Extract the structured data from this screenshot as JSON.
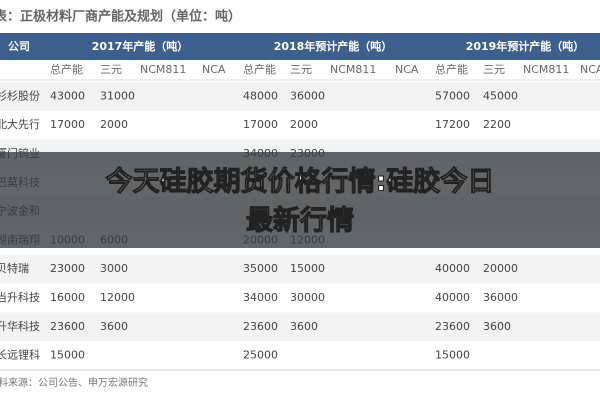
{
  "title": "表：正极材料厂商产能及规划（单位：吨）",
  "table": {
    "header": [
      "公司",
      "2017年产能（吨）",
      "2018年预计产能（吨）",
      "2019年预计产能（吨）"
    ],
    "subheader": [
      "总产能",
      "三元",
      "NCM811",
      "NCA"
    ],
    "rows": [
      [
        "杉杉股份",
        43000,
        31000,
        null,
        null,
        48000,
        36000,
        null,
        null,
        57000,
        45000,
        null,
        null
      ],
      [
        "北大先行",
        17000,
        2000,
        null,
        null,
        17000,
        2000,
        null,
        null,
        17200,
        2200,
        null,
        null
      ],
      [
        "厦门钨业",
        null,
        null,
        null,
        null,
        34000,
        23000,
        null,
        null,
        null,
        null,
        null,
        null
      ],
      [
        "巴莫科技",
        null,
        null,
        null,
        null,
        null,
        null,
        null,
        null,
        null,
        null,
        null,
        null
      ],
      [
        "宁波金和",
        null,
        null,
        null,
        null,
        null,
        null,
        null,
        null,
        null,
        null,
        null,
        null
      ],
      [
        "湖南瑞翔",
        10000,
        6000,
        null,
        null,
        20000,
        12000,
        null,
        null,
        null,
        null,
        null,
        null
      ],
      [
        "贝特瑞",
        23000,
        3000,
        null,
        null,
        35000,
        15000,
        null,
        null,
        40000,
        20000,
        null,
        null
      ],
      [
        "当升科技",
        16000,
        12000,
        null,
        null,
        34000,
        30000,
        null,
        null,
        40000,
        36000,
        null,
        null
      ],
      [
        "升华科技",
        23600,
        3600,
        null,
        null,
        23600,
        3600,
        null,
        null,
        23600,
        3600,
        null,
        null
      ],
      [
        "长远锂科",
        15000,
        null,
        null,
        null,
        25000,
        null,
        null,
        null,
        15000,
        null,
        null,
        null
      ]
    ]
  },
  "source": "资料来源：公司公告、申万宏源研究",
  "banner": [
    "今天硅胶期货价格行情:硅胶今日",
    "最新行情"
  ]
}
